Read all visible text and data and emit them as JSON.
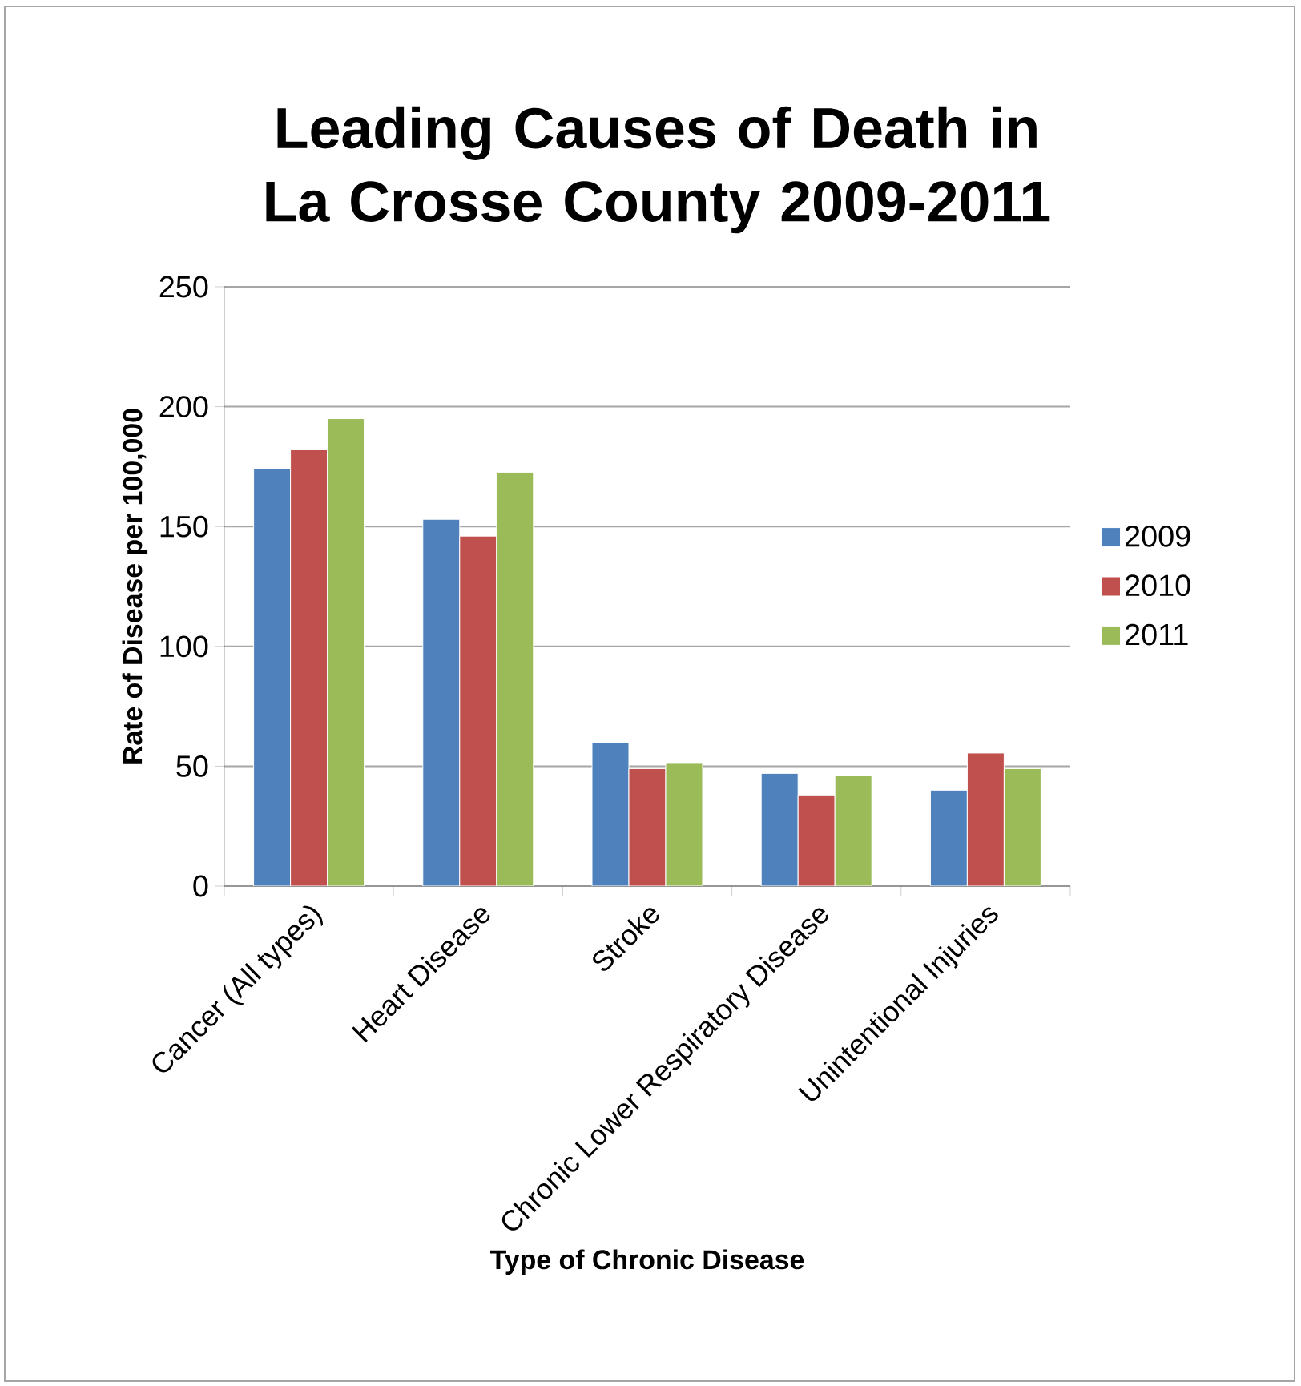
{
  "chart_data": {
    "type": "bar",
    "title": "Leading Causes of Death in La Crosse County 2009-2011",
    "xlabel": "Type of Chronic Disease",
    "ylabel": "Rate of Disease per 100,000",
    "categories": [
      "Cancer (All types)",
      "Heart Disease",
      "Stroke",
      "Chronic Lower Respiratory Disease",
      "Unintentional Injuries"
    ],
    "series": [
      {
        "name": "2009",
        "color": "#4f81bd",
        "values": [
          174,
          153,
          60,
          47,
          40
        ]
      },
      {
        "name": "2010",
        "color": "#c0504d",
        "values": [
          182,
          146,
          49,
          38,
          55.5
        ]
      },
      {
        "name": "2011",
        "color": "#9bbb59",
        "values": [
          195,
          172.5,
          51.5,
          46,
          49
        ]
      }
    ],
    "ylim": [
      0,
      250
    ],
    "yticks": [
      0,
      50,
      100,
      150,
      200,
      250
    ],
    "grid": "y",
    "legend": "right"
  }
}
